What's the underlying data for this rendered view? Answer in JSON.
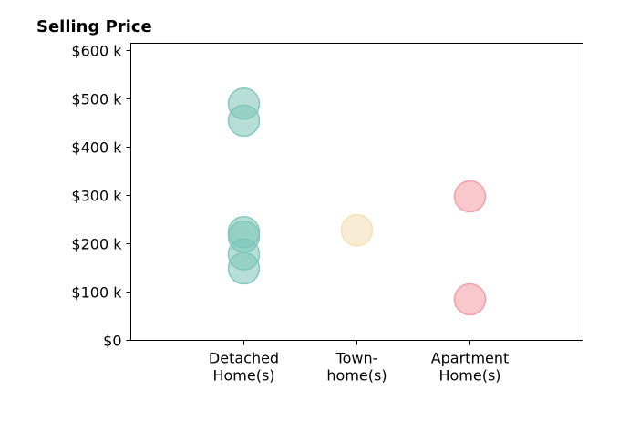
{
  "chart_data": {
    "type": "scatter",
    "title": "Selling Price",
    "xlabel": "",
    "ylabel": "",
    "categories": [
      {
        "lines": [
          "Detached",
          "Home(s)"
        ],
        "color": "#7cc4b8"
      },
      {
        "lines": [
          "Town-",
          "home(s)"
        ],
        "color": "#f3dfb0"
      },
      {
        "lines": [
          "Apartment",
          "Home(s)"
        ],
        "color": "#f29aa3"
      }
    ],
    "xlim": [
      0,
      4
    ],
    "ylim": [
      0,
      615000
    ],
    "yticks": [
      {
        "value": 0,
        "label": "$0"
      },
      {
        "value": 100000,
        "label": "$100 k"
      },
      {
        "value": 200000,
        "label": "$200 k"
      },
      {
        "value": 300000,
        "label": "$300 k"
      },
      {
        "value": 400000,
        "label": "$400 k"
      },
      {
        "value": 500000,
        "label": "$500 k"
      },
      {
        "value": 600000,
        "label": "$600 k"
      }
    ],
    "points": [
      {
        "category": 1,
        "value": 490000
      },
      {
        "category": 1,
        "value": 455000
      },
      {
        "category": 1,
        "value": 224000
      },
      {
        "category": 1,
        "value": 215000
      },
      {
        "category": 1,
        "value": 178000
      },
      {
        "category": 1,
        "value": 149000
      },
      {
        "category": 2,
        "value": 228000
      },
      {
        "category": 3,
        "value": 298000
      },
      {
        "category": 3,
        "value": 85000
      }
    ],
    "grid": false
  }
}
